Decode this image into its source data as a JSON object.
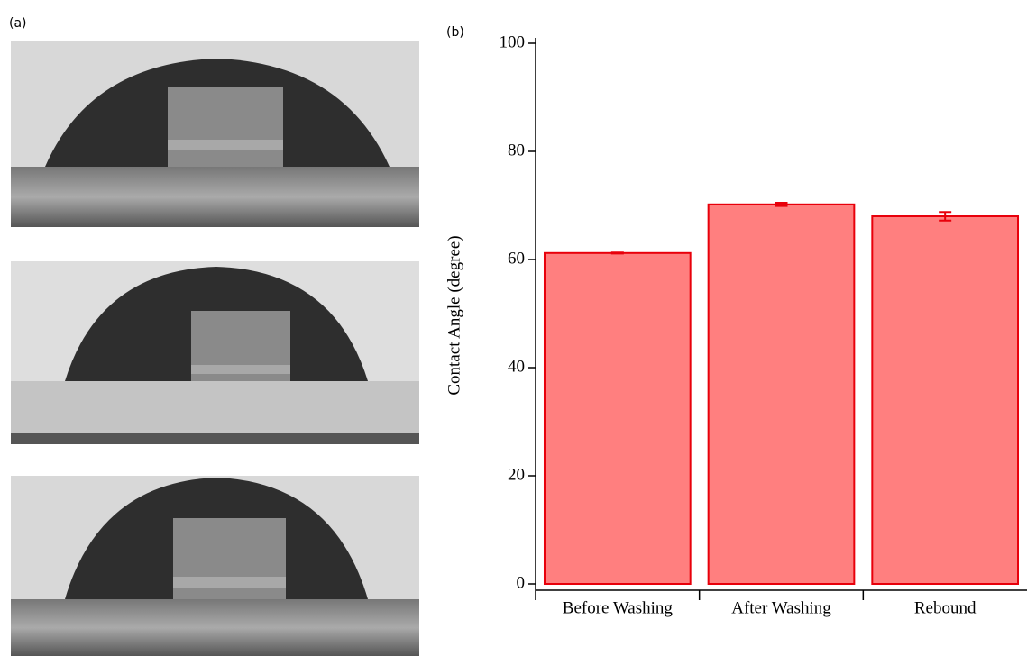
{
  "panel_a_label": "(a)",
  "chart_data": {
    "type": "bar",
    "panel_label": "(b)",
    "y_label": "Contact Angle (degree)",
    "categories": [
      "Before Washing",
      "After Washing",
      "Rebound"
    ],
    "values": [
      61.2,
      70.2,
      68.0
    ],
    "errors": [
      0.1,
      0.3,
      0.8
    ],
    "color": "#ff7f7f",
    "edge_color": "#e8000b",
    "ylim": [
      0,
      100
    ],
    "yticks": [
      0,
      20,
      40,
      60,
      80,
      100
    ]
  }
}
